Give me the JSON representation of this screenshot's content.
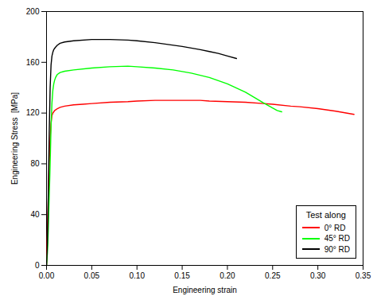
{
  "chart_data": {
    "type": "line",
    "title": "",
    "xlabel": "Engineering strain",
    "ylabel": "Engineering Stress  [MPa]",
    "xlim": [
      0,
      0.35
    ],
    "ylim": [
      0,
      200
    ],
    "xticks": [
      {
        "value": 0,
        "label": "0.00"
      },
      {
        "value": 0.05,
        "label": "0.05"
      },
      {
        "value": 0.1,
        "label": "0.10"
      },
      {
        "value": 0.15,
        "label": "0.15"
      },
      {
        "value": 0.2,
        "label": "0.20"
      },
      {
        "value": 0.25,
        "label": "0.25"
      },
      {
        "value": 0.3,
        "label": "0.30"
      },
      {
        "value": 0.35,
        "label": "0.35"
      }
    ],
    "yticks": [
      0,
      40,
      80,
      120,
      160,
      200
    ],
    "grid": false,
    "legend": "lower right",
    "legend_title": "Test along",
    "series": [
      {
        "name": "0° RD",
        "color": "red",
        "x": [
          0.0,
          0.001,
          0.002,
          0.003,
          0.004,
          0.005,
          0.006,
          0.007,
          0.008,
          0.009,
          0.01,
          0.012,
          0.015,
          0.02,
          0.03,
          0.04,
          0.05,
          0.07,
          0.09,
          0.1,
          0.12,
          0.14,
          0.15,
          0.17,
          0.18,
          0.2,
          0.22,
          0.24,
          0.25,
          0.27,
          0.28,
          0.3,
          0.32,
          0.34
        ],
        "values": [
          0.0,
          28,
          55,
          80,
          100,
          112,
          118,
          120,
          121,
          122,
          122.5,
          123.5,
          124.5,
          125.5,
          126.5,
          127,
          127.5,
          128.5,
          129,
          129.5,
          130,
          130,
          130,
          130,
          129.5,
          129,
          128.5,
          127.5,
          127,
          125.5,
          125,
          123.5,
          121.5,
          119
        ]
      },
      {
        "name": "45° RD",
        "color": "lime",
        "x": [
          0.0,
          0.0005,
          0.001,
          0.0015,
          0.002,
          0.003,
          0.004,
          0.005,
          0.006,
          0.007,
          0.008,
          0.009,
          0.01,
          0.012,
          0.015,
          0.02,
          0.03,
          0.05,
          0.07,
          0.09,
          0.1,
          0.12,
          0.14,
          0.16,
          0.18,
          0.2,
          0.22,
          0.24,
          0.255,
          0.26
        ],
        "values": [
          0.0,
          5,
          10,
          18,
          30,
          55,
          80,
          110,
          128,
          138,
          143,
          146,
          148,
          150.5,
          152,
          153,
          154,
          155.5,
          156.5,
          157,
          156.5,
          155.5,
          154,
          151.5,
          148,
          143,
          136.5,
          128,
          122,
          121
        ]
      },
      {
        "name": "90° RD",
        "color": "black",
        "x": [
          0.0,
          0.0005,
          0.001,
          0.0015,
          0.002,
          0.003,
          0.004,
          0.005,
          0.006,
          0.007,
          0.008,
          0.009,
          0.01,
          0.012,
          0.015,
          0.02,
          0.03,
          0.05,
          0.07,
          0.09,
          0.1,
          0.12,
          0.15,
          0.17,
          0.18,
          0.19,
          0.2,
          0.21
        ],
        "values": [
          0.0,
          8,
          18,
          35,
          60,
          105,
          140,
          158,
          165,
          168,
          170,
          171,
          172,
          173.5,
          175,
          176,
          177,
          178,
          178,
          177.5,
          177,
          175.5,
          172.5,
          170,
          168.5,
          167,
          165,
          163
        ]
      }
    ]
  }
}
